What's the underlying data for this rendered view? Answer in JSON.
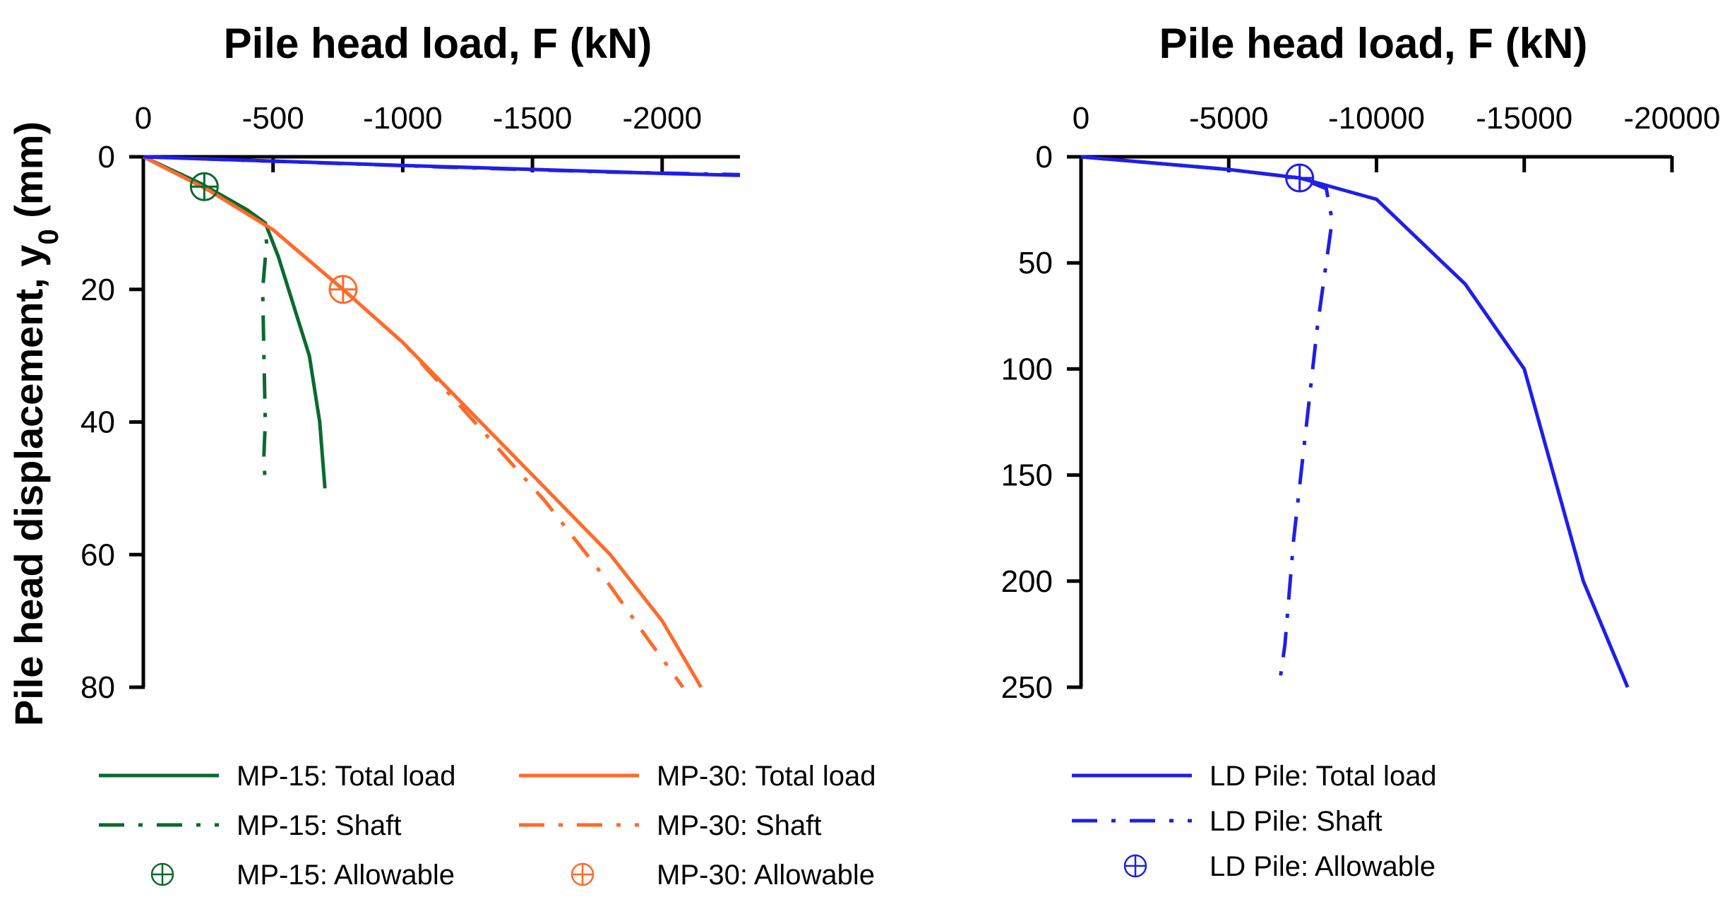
{
  "chart_data": [
    {
      "type": "line",
      "title": "Pile head load, F (kN)",
      "xlabel": "Pile head load, F (kN)",
      "ylabel": "Pile head displacement, y0 (mm)",
      "ylabel_main": "Pile head displacement, y",
      "ylabel_sub": "0",
      "ylabel_unit": " (mm)",
      "xlim": [
        0,
        -2300
      ],
      "ylim": [
        0,
        80
      ],
      "x_ticks": [
        0,
        -500,
        -1000,
        -1500,
        -2000
      ],
      "x_tick_labels": [
        "0",
        "-500",
        "-1000",
        "-1500",
        "-2000"
      ],
      "y_ticks": [
        0,
        20,
        40,
        60,
        80
      ],
      "y_tick_labels": [
        "0",
        "20",
        "40",
        "60",
        "80"
      ],
      "series": [
        {
          "name": "MP-15: Total load",
          "style": "solid",
          "color": "#0b6a2e",
          "x": [
            0,
            -220,
            -400,
            -470,
            -520,
            -560,
            -600,
            -640,
            -680,
            -700
          ],
          "y": [
            0,
            4,
            8,
            10,
            15,
            20,
            25,
            30,
            40,
            50
          ]
        },
        {
          "name": "MP-15: Shaft",
          "style": "dashdot",
          "color": "#0b6a2e",
          "x": [
            0,
            -220,
            -400,
            -470,
            -475,
            -460,
            -465,
            -470,
            -465,
            -470
          ],
          "y": [
            0,
            4,
            8,
            10,
            13,
            20,
            30,
            40,
            45,
            50
          ]
        },
        {
          "name": "MP-30: Total load",
          "style": "solid",
          "color": "#ff6a2a",
          "x": [
            0,
            -250,
            -500,
            -770,
            -1000,
            -1300,
            -1550,
            -1800,
            -2000,
            -2150
          ],
          "y": [
            0,
            5,
            11,
            20,
            28,
            40,
            50,
            60,
            70,
            80
          ]
        },
        {
          "name": "MP-30: Shaft",
          "style": "dashdot",
          "color": "#ff6a2a",
          "x": [
            0,
            -250,
            -500,
            -770,
            -1000,
            -1300,
            -1550,
            -1750,
            -1950,
            -2080
          ],
          "y": [
            0,
            5,
            11,
            20,
            28,
            41,
            52,
            62,
            73,
            80
          ]
        },
        {
          "name": "LD Pile: Total load",
          "style": "solid",
          "color": "#1f1fe8",
          "x": [
            0,
            -1000,
            -2000,
            -2300
          ],
          "y": [
            0,
            1.3,
            2.5,
            2.8
          ]
        },
        {
          "name": "LD Pile: Shaft",
          "style": "dashdot",
          "color": "#1f1fe8",
          "x": [
            0,
            -600,
            -1200,
            -1800,
            -2300
          ],
          "y": [
            0,
            0.8,
            1.6,
            2.3,
            2.7
          ]
        }
      ],
      "markers": [
        {
          "name": "MP-15: Allowable",
          "x": -235,
          "y": 4.5,
          "color": "#0b6a2e"
        },
        {
          "name": "MP-30: Allowable",
          "x": -770,
          "y": 20,
          "color": "#ff6a2a"
        }
      ],
      "legend": {
        "placement": "bottom",
        "entries": [
          {
            "label": "MP-15: Total load",
            "style": "solid",
            "color": "#0b6a2e"
          },
          {
            "label": "MP-30: Total load",
            "style": "solid",
            "color": "#ff6a2a"
          },
          {
            "label": "MP-15: Shaft",
            "style": "dashdot",
            "color": "#0b6a2e"
          },
          {
            "label": "MP-30: Shaft",
            "style": "dashdot",
            "color": "#ff6a2a"
          },
          {
            "label": "MP-15: Allowable",
            "style": "marker",
            "color": "#0b6a2e"
          },
          {
            "label": "MP-30: Allowable",
            "style": "marker",
            "color": "#ff6a2a"
          }
        ]
      }
    },
    {
      "type": "line",
      "title": "Pile head load, F (kN)",
      "xlabel": "Pile head load, F (kN)",
      "ylabel": "",
      "xlim": [
        0,
        -20000
      ],
      "ylim": [
        0,
        250
      ],
      "x_ticks": [
        0,
        -5000,
        -10000,
        -15000,
        -20000
      ],
      "x_tick_labels": [
        "0",
        "-5000",
        "-10000",
        "-15000",
        "-20000"
      ],
      "y_ticks": [
        0,
        50,
        100,
        150,
        200,
        250
      ],
      "y_tick_labels": [
        "0",
        "50",
        "100",
        "150",
        "200",
        "250"
      ],
      "series": [
        {
          "name": "LD Pile: Total load",
          "style": "solid",
          "color": "#1f1fe8",
          "x": [
            0,
            -5000,
            -7400,
            -10000,
            -11500,
            -13000,
            -14000,
            -15000,
            -16000,
            -17000,
            -18500
          ],
          "y": [
            0,
            6,
            10,
            20,
            40,
            60,
            80,
            100,
            150,
            200,
            250
          ]
        },
        {
          "name": "LD Pile: Shaft",
          "style": "dashdot",
          "color": "#1f1fe8",
          "x": [
            0,
            -5000,
            -7400,
            -8300,
            -8500,
            -8000,
            -7600,
            -7200,
            -6900,
            -6700
          ],
          "y": [
            0,
            6,
            10,
            15,
            30,
            80,
            130,
            180,
            230,
            250
          ]
        }
      ],
      "markers": [
        {
          "name": "LD Pile: Allowable",
          "x": -7400,
          "y": 10,
          "color": "#1f1fe8"
        }
      ],
      "legend": {
        "placement": "bottom",
        "entries": [
          {
            "label": "LD Pile: Total load",
            "style": "solid",
            "color": "#1f1fe8"
          },
          {
            "label": "LD Pile: Shaft",
            "style": "dashdot",
            "color": "#1f1fe8"
          },
          {
            "label": "LD Pile: Allowable",
            "style": "marker",
            "color": "#1f1fe8"
          }
        ]
      }
    }
  ]
}
